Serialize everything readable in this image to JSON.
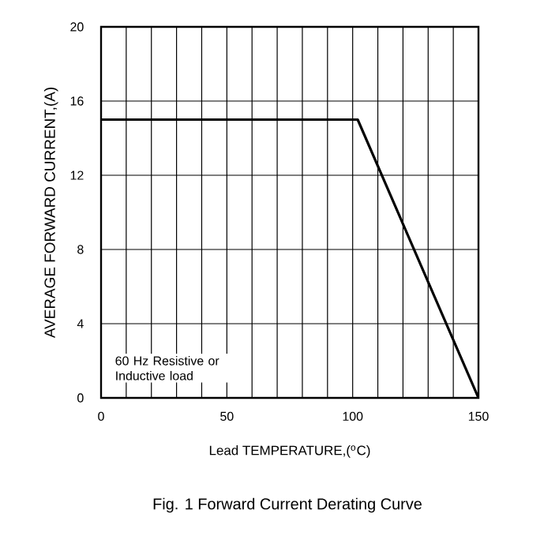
{
  "chart_data": {
    "type": "line",
    "title": "Fig. 1  Forward Current Derating Curve",
    "xlabel": "Lead TEMPERATURE,($^{o}$C)",
    "ylabel": "AVERAGE FORWARD CURRENT,(A)",
    "x": [
      0,
      102,
      150
    ],
    "series": [
      {
        "color": "#000000",
        "values": [
          15,
          15,
          0
        ]
      }
    ],
    "xlim": [
      0,
      150
    ],
    "ylim": [
      0,
      20
    ],
    "xticks": [
      0,
      {
        "value": 10,
        "label": null
      },
      {
        "value": 20,
        "label": null
      },
      {
        "value": 30,
        "label": null
      },
      {
        "value": 40,
        "label": null
      },
      50,
      {
        "value": 60,
        "label": null
      },
      {
        "value": 70,
        "label": null
      },
      {
        "value": 80,
        "label": null
      },
      {
        "value": 90,
        "label": null
      },
      100,
      {
        "value": 110,
        "label": null
      },
      {
        "value": 120,
        "label": null
      },
      {
        "value": 130,
        "label": null
      },
      {
        "value": 140,
        "label": null
      },
      150
    ],
    "yticks": [
      0,
      4,
      8,
      12,
      16,
      20
    ],
    "grid": true,
    "marker": "none",
    "line_style": "solid",
    "annotations": [
      "60 Hz Resistive or Inductive load"
    ]
  }
}
